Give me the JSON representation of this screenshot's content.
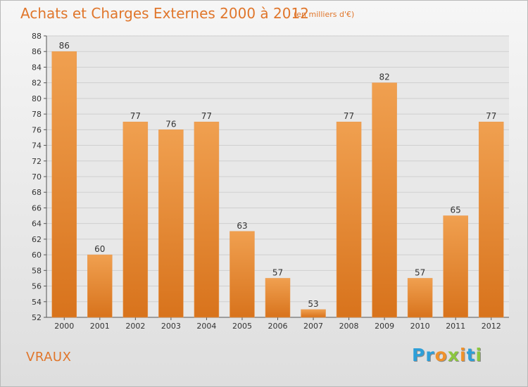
{
  "chart_data": {
    "type": "bar",
    "title": "Achats et Charges Externes 2000 à 2012",
    "subtitle": "(en milliers d'€)",
    "categories": [
      "2000",
      "2001",
      "2002",
      "2003",
      "2004",
      "2005",
      "2006",
      "2007",
      "2008",
      "2009",
      "2010",
      "2011",
      "2012"
    ],
    "values": [
      86,
      60,
      77,
      76,
      77,
      63,
      57,
      53,
      77,
      82,
      57,
      65,
      77
    ],
    "ylim": [
      52,
      88
    ],
    "yticks": [
      52,
      54,
      56,
      58,
      60,
      62,
      64,
      66,
      68,
      70,
      72,
      74,
      76,
      78,
      80,
      82,
      84,
      86,
      88
    ],
    "grid": true,
    "bar_color": "#f0a050",
    "bar_color_dark": "#d8731c"
  },
  "commune": "VRAUX",
  "logo": {
    "letters": [
      "P",
      "r",
      "o",
      "x",
      "i",
      "t",
      "i"
    ],
    "colors": [
      "#2e9fd8",
      "#2e9fd8",
      "#f0922b",
      "#8cc63f",
      "#f0922b",
      "#2e9fd8",
      "#8cc63f"
    ]
  }
}
